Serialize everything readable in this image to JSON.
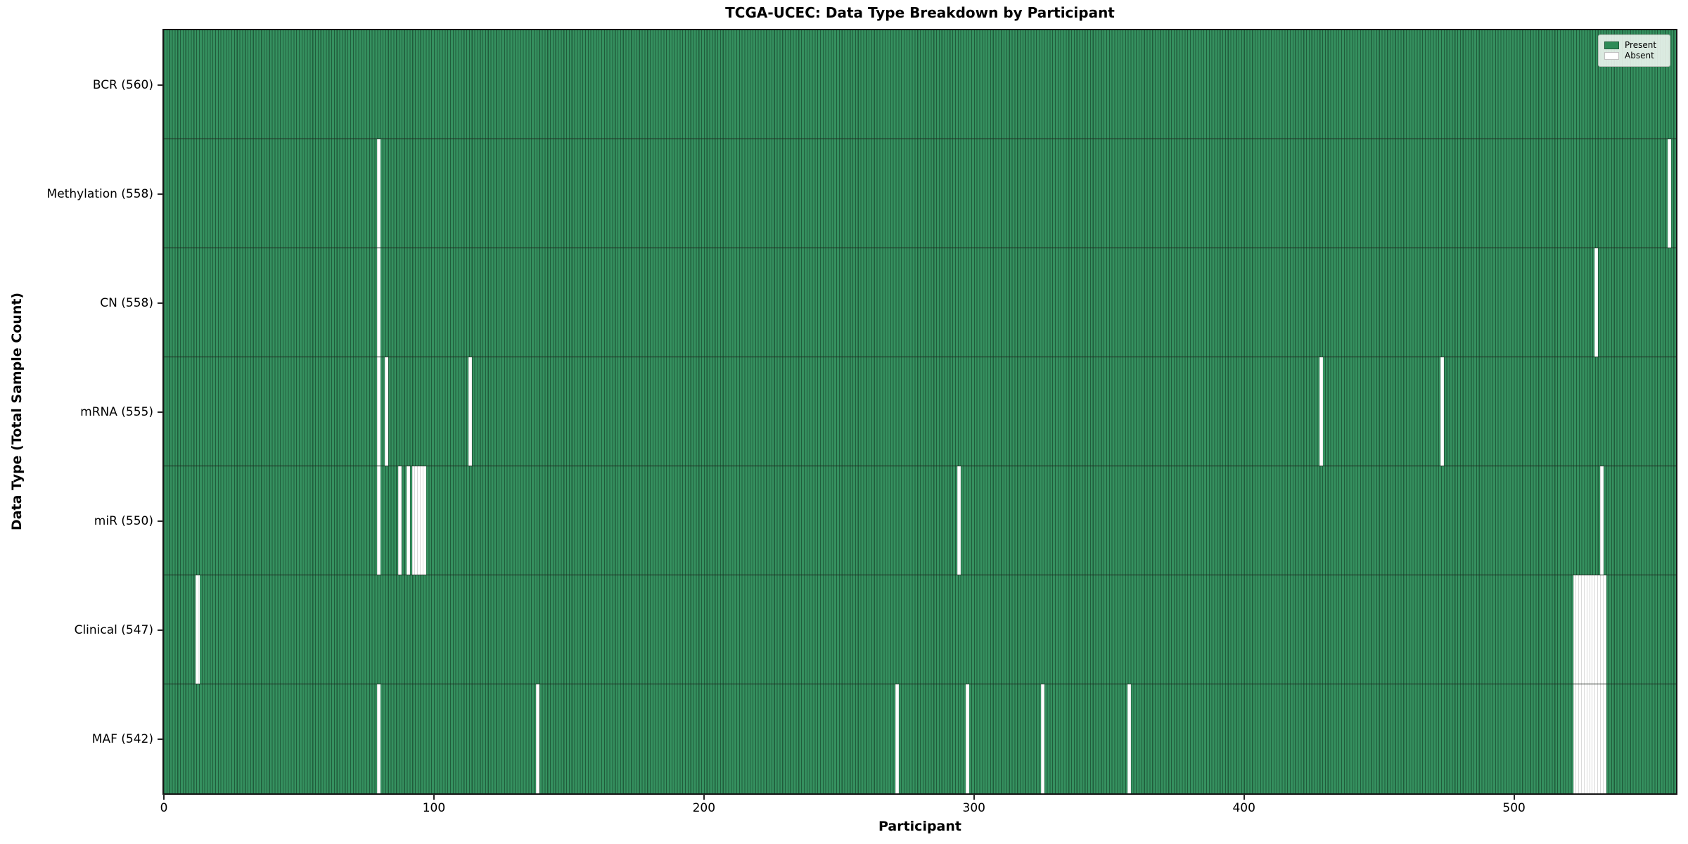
{
  "chart_data": {
    "type": "heatmap",
    "title": "TCGA-UCEC: Data Type Breakdown by Participant",
    "xlabel": "Participant",
    "ylabel": "Data Type (Total Sample Count)",
    "x_range": [
      0,
      560
    ],
    "x_ticks": [
      0,
      100,
      200,
      300,
      400,
      500
    ],
    "n_participants": 560,
    "grid": false,
    "legend": {
      "position": "upper right",
      "present_label": "Present",
      "absent_label": "Absent"
    },
    "colors": {
      "present_fill": "#2e8b57",
      "present_edge": "#205c3b",
      "absent_fill": "#ffffff",
      "absent_edge": "#d9d9d9"
    },
    "rows": [
      {
        "data_type": "BCR",
        "label": "BCR (560)",
        "total": 560,
        "absent_participants": []
      },
      {
        "data_type": "Methylation",
        "label": "Methylation (558)",
        "total": 558,
        "absent_participants": [
          79,
          557
        ]
      },
      {
        "data_type": "CN",
        "label": "CN (558)",
        "total": 558,
        "absent_participants": [
          79,
          530
        ]
      },
      {
        "data_type": "mRNA",
        "label": "mRNA (555)",
        "total": 555,
        "absent_participants": [
          79,
          82,
          113,
          428,
          473
        ]
      },
      {
        "data_type": "miR",
        "label": "miR (550)",
        "total": 550,
        "absent_participants": [
          79,
          87,
          90,
          92,
          93,
          94,
          95,
          96,
          294,
          532
        ]
      },
      {
        "data_type": "Clinical",
        "label": "Clinical (547)",
        "total": 547,
        "absent_participants": [
          12,
          522,
          523,
          524,
          525,
          526,
          527,
          528,
          529,
          530,
          531,
          532,
          533
        ]
      },
      {
        "data_type": "MAF",
        "label": "MAF (542)",
        "total": 542,
        "absent_participants": [
          79,
          138,
          271,
          297,
          325,
          357,
          522,
          523,
          524,
          525,
          526,
          527,
          528,
          529,
          530,
          531,
          532,
          533
        ]
      }
    ]
  }
}
